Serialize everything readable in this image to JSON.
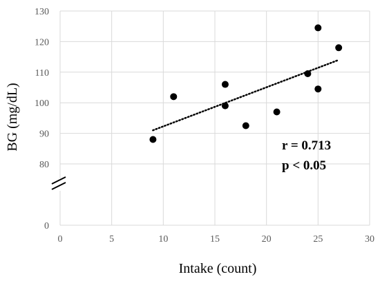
{
  "chart_data": {
    "type": "scatter",
    "xlabel": "Intake (count)",
    "ylabel": "BG (mg/dL)",
    "xlim": [
      0,
      30
    ],
    "x_ticks": [
      0,
      5,
      10,
      15,
      20,
      25,
      30
    ],
    "y_ticks": [
      0,
      80,
      90,
      100,
      110,
      120,
      130
    ],
    "y_axis_break": {
      "lower": 0,
      "upper": 80
    },
    "grid": true,
    "points": [
      {
        "x": 9,
        "y": 88
      },
      {
        "x": 11,
        "y": 102
      },
      {
        "x": 16,
        "y": 106
      },
      {
        "x": 16,
        "y": 99
      },
      {
        "x": 18,
        "y": 92.5
      },
      {
        "x": 21,
        "y": 97
      },
      {
        "x": 24,
        "y": 109.5
      },
      {
        "x": 25,
        "y": 124.5
      },
      {
        "x": 25,
        "y": 104.5
      },
      {
        "x": 27,
        "y": 118
      }
    ],
    "trendline": {
      "style": "dotted",
      "x": [
        9,
        27
      ],
      "y": [
        91,
        114
      ]
    },
    "annotations": [
      "r = 0.713",
      "p < 0.05"
    ]
  },
  "colors": {
    "point": "#000000",
    "grid": "#d9d9d9",
    "tick_text": "#595959"
  }
}
